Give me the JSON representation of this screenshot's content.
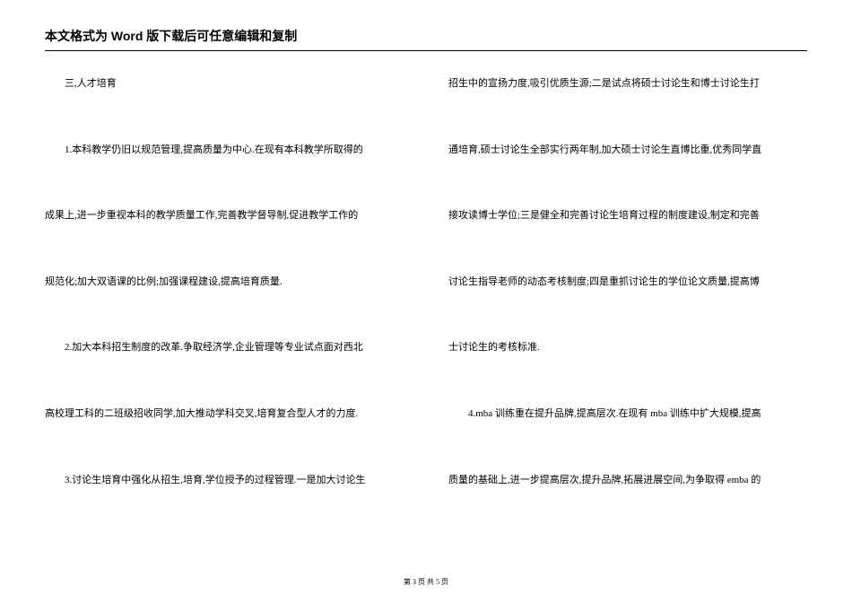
{
  "header": {
    "text": "本文格式为 Word 版下载后可任意编辑和复制"
  },
  "left_column": {
    "lines": [
      {
        "text": "三,人才培育",
        "indent": "indent1"
      },
      {
        "text": "1.本科教学仍旧以规范管理,提高质量为中心.在现有本科教学所取得的",
        "indent": "indent2"
      },
      {
        "text": "成果上,进一步重视本科的教学质量工作,完善教学督导制,促进教学工作的",
        "indent": ""
      },
      {
        "text": "规范化;加大双语课的比例;加强课程建设,提高培育质量.",
        "indent": ""
      },
      {
        "text": "2.加大本科招生制度的改革.争取经济学,企业管理等专业试点面对西北",
        "indent": "indent2"
      },
      {
        "text": "高校理工科的二班级招收同学,加大推动学科交叉,培育复合型人才的力度.",
        "indent": ""
      },
      {
        "text": "3.讨论生培育中强化从招生,培育,学位授予的过程管理.一是加大讨论生",
        "indent": "indent2"
      }
    ]
  },
  "right_column": {
    "lines": [
      {
        "text": "招生中的宣扬力度,吸引优质生源;二是试点将硕士讨论生和博士讨论生打",
        "indent": ""
      },
      {
        "text": "通培育,硕士讨论生全部实行两年制,加大硕士讨论生直博比重,优秀同学直",
        "indent": ""
      },
      {
        "text": "接攻读博士学位;三是健全和完善讨论生培育过程的制度建设,制定和完善",
        "indent": ""
      },
      {
        "text": "讨论生指导老师的动态考核制度;四是重抓讨论生的学位论文质量,提高博",
        "indent": ""
      },
      {
        "text": "士讨论生的考核标准.",
        "indent": ""
      },
      {
        "text": "4.mba 训练重在提升品牌,提高层次.在现有 mba 训练中扩大规模,提高",
        "indent": "indent2"
      },
      {
        "text": "质量的基础上,进一步提高层次,提升品牌,拓展进展空间,为争取得 emba 的",
        "indent": ""
      }
    ]
  },
  "footer": {
    "text": "第 3 页 共 5 页"
  }
}
